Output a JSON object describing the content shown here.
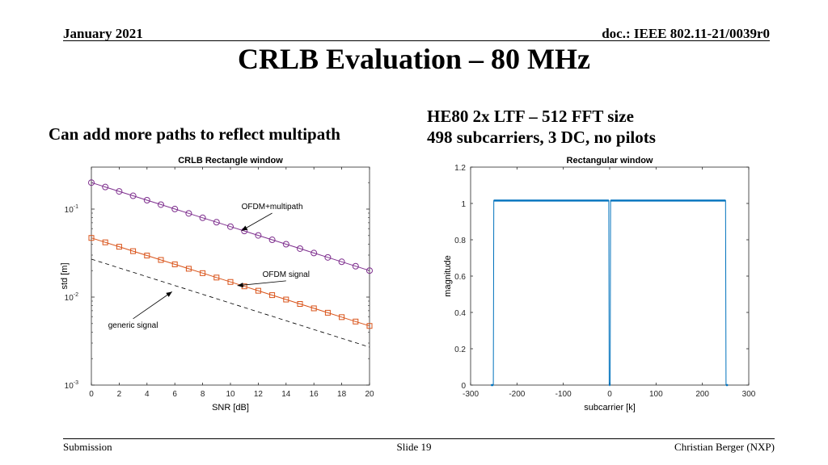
{
  "header": {
    "date": "January 2021",
    "doc": "doc.: IEEE 802.11-21/0039r0"
  },
  "slide_title": "CRLB Evaluation – 80 MHz",
  "left_caption": "Can add more paths to reflect multipath",
  "right_caption": {
    "line1": "HE80 2x LTF – 512 FFT size",
    "line2": "498 subcarriers, 3 DC, no pilots"
  },
  "footer": {
    "left": "Submission",
    "center": "Slide 19",
    "right": "Christian Berger (NXP)"
  },
  "colors": {
    "multipath": "#7E2F8E",
    "ofdm": "#D95319",
    "generic": "#000000",
    "window": "#0072BD"
  },
  "chart_data": [
    {
      "type": "line",
      "title": "CRLB Rectangle window",
      "xlabel": "SNR [dB]",
      "ylabel": "std [m]",
      "yscale": "log",
      "xlim": [
        0,
        20
      ],
      "ylim": [
        0.001,
        0.3
      ],
      "xticks": [
        0,
        2,
        4,
        6,
        8,
        10,
        12,
        14,
        16,
        18,
        20
      ],
      "ytick_labels": [
        {
          "base": "10",
          "exp": "-1",
          "value": 0.1
        },
        {
          "base": "10",
          "exp": "-2",
          "value": 0.01
        },
        {
          "base": "10",
          "exp": "-3",
          "value": 0.001
        }
      ],
      "grid": false,
      "x": [
        0,
        1,
        2,
        3,
        4,
        5,
        6,
        7,
        8,
        9,
        10,
        11,
        12,
        13,
        14,
        15,
        16,
        17,
        18,
        19,
        20
      ],
      "series": [
        {
          "key": "multipath",
          "marker": "circle",
          "start": 0.2,
          "end": 0.02
        },
        {
          "key": "ofdm",
          "marker": "square",
          "start": 0.047,
          "end": 0.0047
        },
        {
          "key": "generic",
          "marker": "none",
          "dashed": true,
          "start": 0.027,
          "end": 0.0027
        }
      ],
      "annotations": [
        {
          "text": "OFDM+multipath",
          "target": [
            10.8,
            0.057
          ],
          "text_at": [
            13,
            0.1
          ]
        },
        {
          "text": "OFDM signal",
          "target": [
            10.5,
            0.0135
          ],
          "text_at": [
            14,
            0.017
          ]
        },
        {
          "text": "generic signal",
          "target": [
            5.8,
            0.0115
          ],
          "text_at": [
            3,
            0.0045
          ]
        }
      ]
    },
    {
      "type": "line",
      "title": "Rectangular window",
      "xlabel": "subcarrier [k]",
      "ylabel": "magnitude",
      "xlim": [
        -300,
        300
      ],
      "ylim": [
        0,
        1.2
      ],
      "xticks": [
        -300,
        -200,
        -100,
        0,
        100,
        200,
        300
      ],
      "yticks": [
        0,
        0.2,
        0.4,
        0.6,
        0.8,
        1,
        1.2
      ],
      "grid": false,
      "occupied_magnitude": 1.0159,
      "occupied_ranges": [
        [
          -250,
          -2
        ],
        [
          2,
          250
        ]
      ],
      "dc_null": [
        -1,
        1
      ],
      "support": [
        -256,
        255
      ]
    }
  ]
}
